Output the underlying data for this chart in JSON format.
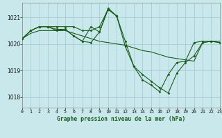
{
  "title": "Graphe pression niveau de la mer (hPa)",
  "bg_color": "#c8e8ec",
  "grid_color": "#a0c8d0",
  "line_color": "#1a5c1a",
  "spine_color": "#888888",
  "xlim": [
    0,
    23
  ],
  "ylim": [
    1017.6,
    1021.55
  ],
  "yticks": [
    1018,
    1019,
    1020,
    1021
  ],
  "xticks": [
    0,
    1,
    2,
    3,
    4,
    5,
    6,
    7,
    8,
    9,
    10,
    11,
    12,
    13,
    14,
    15,
    16,
    17,
    18,
    19,
    20,
    21,
    22,
    23
  ],
  "series": [
    {
      "x": [
        0,
        1,
        2,
        3,
        4,
        5,
        6,
        7,
        8,
        9,
        10,
        11,
        12,
        13,
        14,
        15,
        16,
        17,
        18,
        19,
        20,
        21,
        22,
        23
      ],
      "y": [
        1020.2,
        1020.5,
        1020.65,
        1020.65,
        1020.55,
        1020.55,
        1020.3,
        1020.1,
        1020.05,
        1020.45,
        1021.3,
        1021.05,
        1019.9,
        1019.15,
        1018.85,
        1018.6,
        1018.35,
        1018.15,
        1018.9,
        1019.3,
        1019.55,
        1020.05,
        1020.1,
        1020.05
      ],
      "marker": true
    },
    {
      "x": [
        0,
        1,
        2,
        3,
        4,
        5,
        6,
        7,
        8,
        9,
        10,
        11,
        12,
        13,
        14,
        15,
        16,
        17,
        18,
        19,
        20,
        21,
        22,
        23
      ],
      "y": [
        1020.2,
        1020.5,
        1020.65,
        1020.65,
        1020.65,
        1020.65,
        1020.65,
        1020.5,
        1020.5,
        1020.65,
        1021.3,
        1021.05,
        1020.1,
        1019.15,
        1018.65,
        1018.45,
        1018.2,
        1018.85,
        1019.3,
        1019.35,
        1020.05,
        1020.1,
        1020.1,
        1020.05
      ],
      "marker": true
    },
    {
      "x": [
        0,
        1,
        2,
        3,
        4,
        5,
        6,
        7,
        8,
        9,
        10,
        11
      ],
      "y": [
        1020.2,
        1020.5,
        1020.65,
        1020.65,
        1020.5,
        1020.55,
        1020.3,
        1020.1,
        1020.65,
        1020.45,
        1021.35,
        1021.05
      ],
      "marker": true
    },
    {
      "x": [
        0,
        1,
        2,
        3,
        4,
        5,
        6,
        7,
        8,
        9,
        10,
        11,
        12,
        13,
        14,
        15,
        16,
        17,
        18,
        19,
        20,
        21,
        22,
        23
      ],
      "y": [
        1020.2,
        1020.4,
        1020.5,
        1020.5,
        1020.5,
        1020.5,
        1020.4,
        1020.3,
        1020.2,
        1020.1,
        1020.05,
        1020.0,
        1019.95,
        1019.85,
        1019.75,
        1019.7,
        1019.6,
        1019.5,
        1019.45,
        1019.4,
        1019.35,
        1020.05,
        1020.1,
        1020.1
      ],
      "marker": false
    }
  ],
  "figsize": [
    3.2,
    2.0
  ],
  "dpi": 100
}
